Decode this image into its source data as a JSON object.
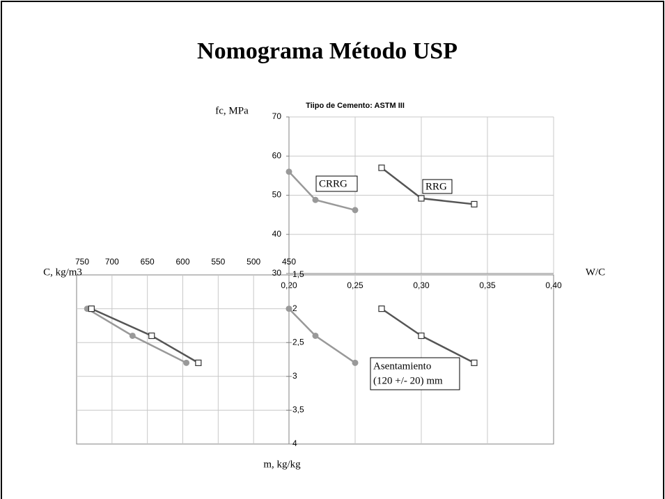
{
  "title": "Nomograma Método USP",
  "chart_data": [
    {
      "type": "line",
      "title": "Tiipo de Cemento:  ASTM III",
      "x_label": "W/C",
      "y_label": "fc, MPa",
      "xlim": [
        0.2,
        0.4
      ],
      "xticks": [
        {
          "value": 0.2,
          "label": "0,20"
        },
        {
          "value": 0.25,
          "label": "0,25"
        },
        {
          "value": 0.3,
          "label": "0,30"
        },
        {
          "value": 0.35,
          "label": "0,35"
        },
        {
          "value": 0.4,
          "label": "0,40"
        }
      ],
      "ylim": [
        30,
        70
      ],
      "yticks": [
        30,
        40,
        50,
        60,
        70
      ],
      "grid": true,
      "series": [
        {
          "name": "CRRG",
          "color": "#999999",
          "marker": "circle",
          "x": [
            0.2,
            0.22,
            0.25
          ],
          "values": [
            56,
            48.8,
            46.2
          ]
        },
        {
          "name": "RRG",
          "color": "#555555",
          "marker": "square",
          "x": [
            0.27,
            0.3,
            0.34
          ],
          "values": [
            57,
            49.2,
            47.7
          ]
        }
      ]
    },
    {
      "type": "line",
      "x_label": "C, kg/m3",
      "xlim": [
        750,
        450
      ],
      "xticks": [
        750,
        700,
        650,
        600,
        550,
        500,
        450
      ],
      "grid": true,
      "series": [
        {
          "color": "#999999",
          "marker": "circle",
          "x": [
            735,
            671,
            595
          ],
          "values": [
            2,
            2.4,
            2.8
          ]
        },
        {
          "color": "#555555",
          "marker": "square",
          "x": [
            729,
            644,
            578
          ],
          "values": [
            2,
            2.4,
            2.8
          ]
        }
      ]
    },
    {
      "type": "line",
      "y_label": "m, kg/kg",
      "y_inverted": true,
      "ylim": [
        1.5,
        4
      ],
      "yticks": [
        {
          "value": 1.5,
          "label": "1,5"
        },
        2,
        {
          "value": 2.5,
          "label": "2,5"
        },
        3,
        {
          "value": 3.5,
          "label": "3,5"
        },
        4
      ],
      "annotation": [
        "Asentamiento",
        "(120 +/- 20) mm"
      ],
      "series": [
        {
          "color": "#999999",
          "marker": "circle",
          "x": [
            0.2,
            0.22,
            0.25
          ],
          "values": [
            2,
            2.4,
            2.8
          ]
        },
        {
          "color": "#555555",
          "marker": "square",
          "x": [
            0.27,
            0.3,
            0.34
          ],
          "values": [
            2,
            2.4,
            2.8
          ]
        }
      ]
    }
  ]
}
